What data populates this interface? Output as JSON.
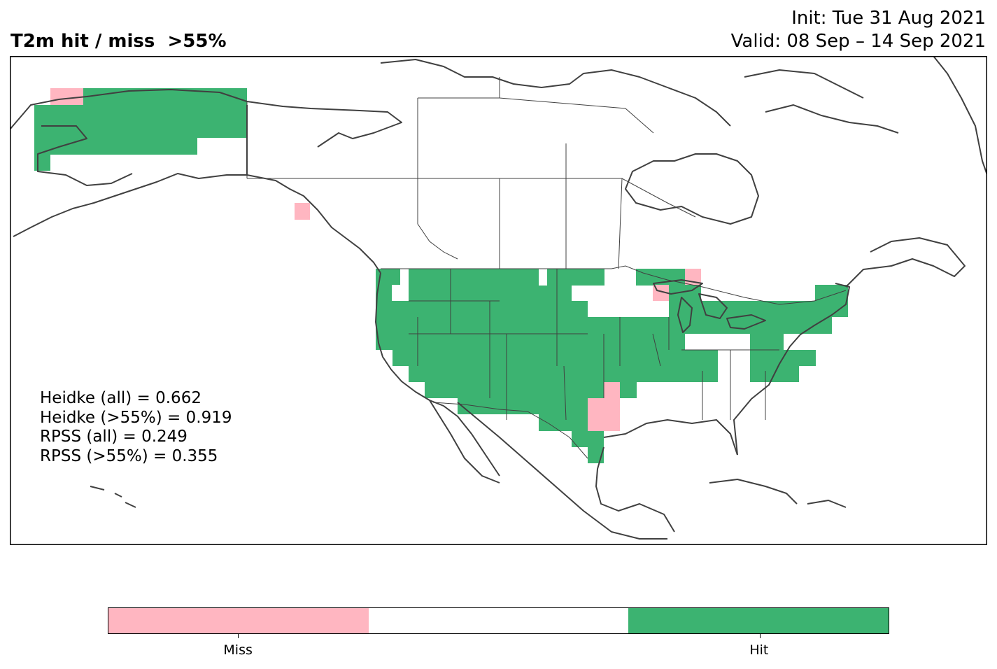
{
  "title": "T2m hit / miss  >55%",
  "init": "Init: Tue 31 Aug 2021",
  "valid": "Valid: 08 Sep – 14 Sep 2021",
  "stats": [
    "Heidke (all) = 0.662",
    "Heidke (>55%) = 0.919",
    "RPSS (all) = 0.249",
    "RPSS (>55%) = 0.355"
  ],
  "colorbar": {
    "segments": [
      {
        "label": "Miss",
        "color": "#ffb6c1"
      },
      {
        "label": "",
        "color": "#ffffff"
      },
      {
        "label": "Hit",
        "color": "#3cb371"
      }
    ]
  },
  "colors": {
    "hit": "#3cb371",
    "miss": "#ffb6c1",
    "coast": "#404040"
  }
}
